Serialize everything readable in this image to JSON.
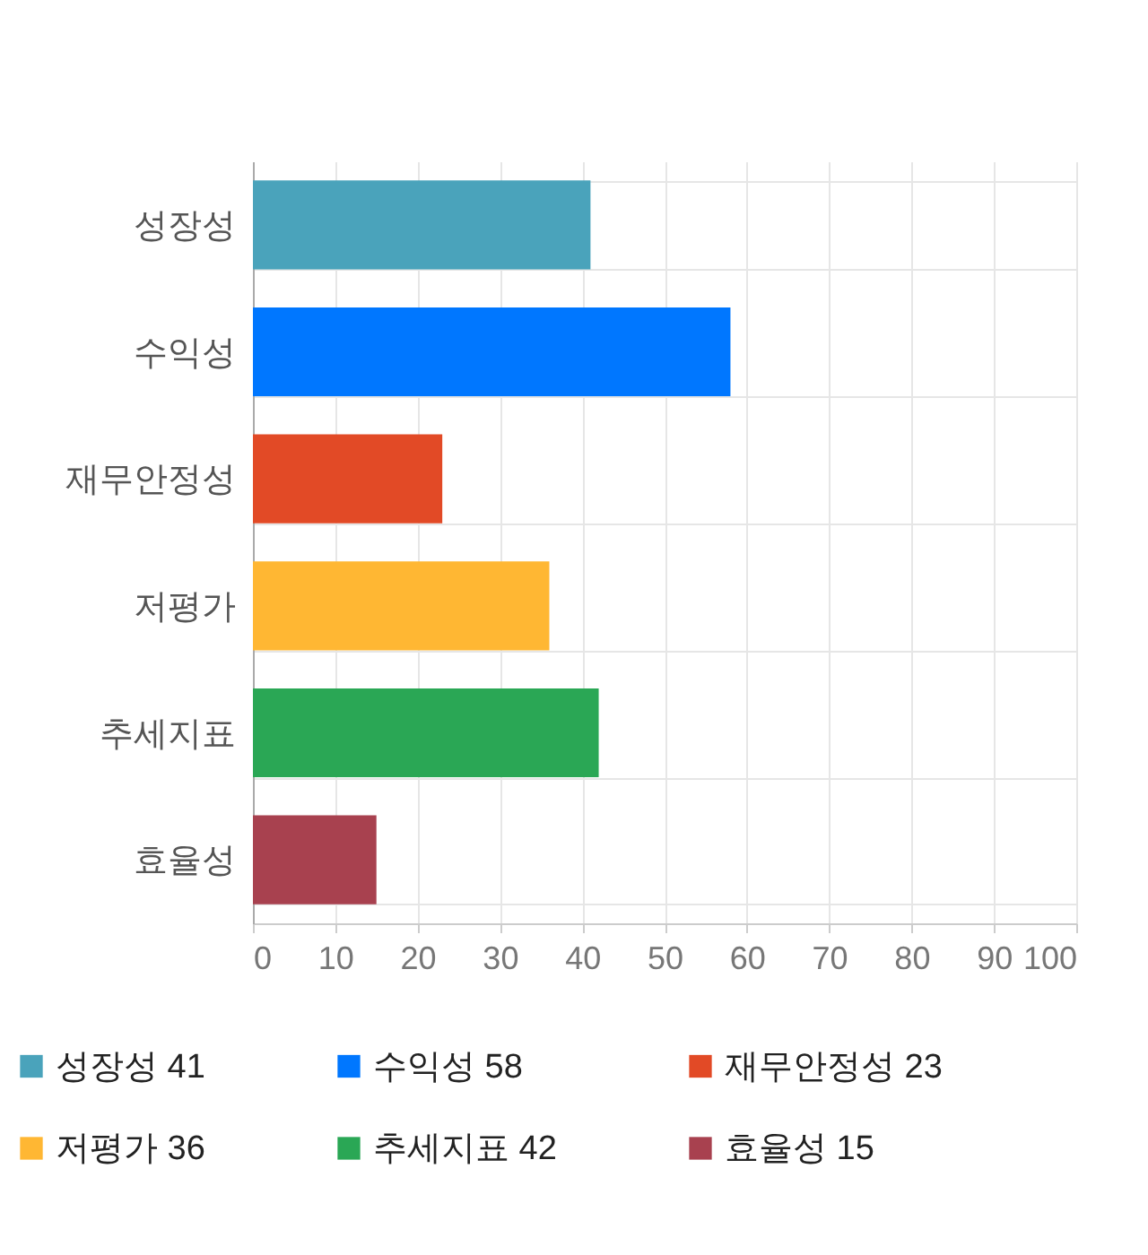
{
  "chart_data": {
    "type": "bar",
    "orientation": "horizontal",
    "stacked": true,
    "categories": [
      "성장성",
      "수익성",
      "재무안정성",
      "저평가",
      "추세지표",
      "효율성"
    ],
    "series": [
      {
        "name": "성장성 41",
        "color": "#4aa3bb",
        "values": [
          41,
          null,
          null,
          null,
          null,
          null
        ]
      },
      {
        "name": "수익성 58",
        "color": "#0077ff",
        "values": [
          null,
          58,
          null,
          null,
          null,
          null
        ]
      },
      {
        "name": "재무안정성 23",
        "color": "#e24a26",
        "values": [
          null,
          null,
          23,
          null,
          null,
          null
        ]
      },
      {
        "name": "저평가 36",
        "color": "#ffb733",
        "values": [
          null,
          null,
          null,
          36,
          null,
          null
        ]
      },
      {
        "name": "추세지표 42",
        "color": "#2aa755",
        "values": [
          null,
          null,
          null,
          null,
          42,
          null
        ]
      },
      {
        "name": "효율성 15",
        "color": "#a8414f",
        "values": [
          null,
          null,
          null,
          null,
          null,
          15
        ]
      }
    ],
    "xlim": [
      0,
      100
    ],
    "xticks": [
      0,
      10,
      20,
      30,
      40,
      50,
      60,
      70,
      80,
      90,
      100
    ],
    "grid": true,
    "legend": "bottom"
  }
}
